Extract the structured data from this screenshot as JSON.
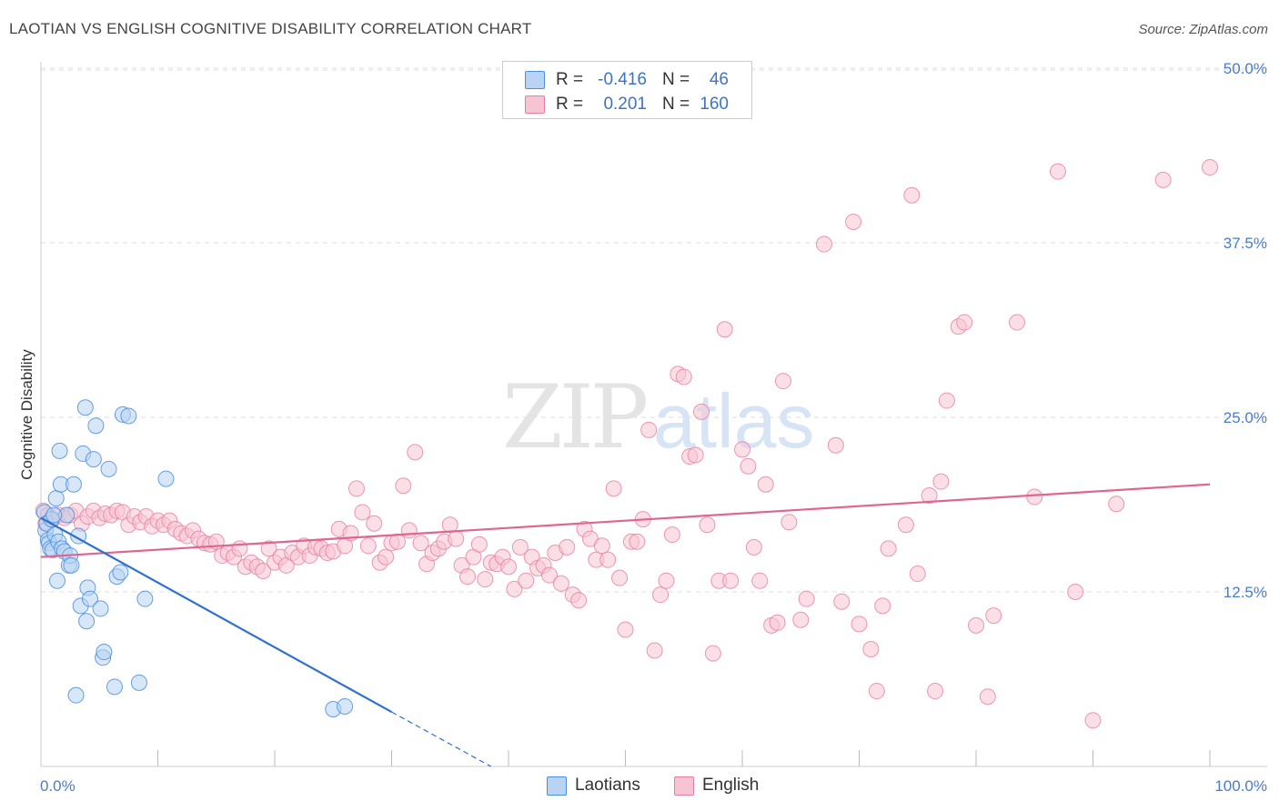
{
  "title": "LAOTIAN VS ENGLISH COGNITIVE DISABILITY CORRELATION CHART",
  "source": "Source: ZipAtlas.com",
  "watermark": {
    "zip": "ZIP",
    "atlas": "atlas"
  },
  "colors": {
    "laotians": "#4a8fdc",
    "laotians_fill": "#b8d3f3",
    "laotians_line": "#2f70d0",
    "english": "#e77ea0",
    "english_fill": "#f7c4d4",
    "english_line": "#e06590",
    "tick": "#4a7cc9",
    "grid": "#dddddd"
  },
  "legend": {
    "rows": [
      {
        "r_label": "R =",
        "r_value": "-0.416",
        "n_label": "N =",
        "n_value": "46"
      },
      {
        "r_label": "R =",
        "r_value": "0.201",
        "n_label": "N =",
        "n_value": "160"
      }
    ]
  },
  "bottom_legend": {
    "laotians": "Laotians",
    "english": "English"
  },
  "chart_data": {
    "type": "scatter",
    "xlabel": "",
    "ylabel": "Cognitive Disability",
    "xlim": [
      0,
      100
    ],
    "ylim": [
      0,
      50
    ],
    "x_tick_labels": [
      "0.0%",
      "100.0%"
    ],
    "y_ticks": [
      12.5,
      25.0,
      37.5,
      50.0
    ],
    "y_tick_labels": [
      "12.5%",
      "25.0%",
      "37.5%",
      "50.0%"
    ],
    "grid": true,
    "legend_position": "top-center",
    "series": [
      {
        "name": "Laotians",
        "points": [
          [
            0.3,
            18.2
          ],
          [
            0.4,
            16.9
          ],
          [
            0.5,
            17.4
          ],
          [
            0.6,
            16.2
          ],
          [
            0.7,
            16.0
          ],
          [
            0.8,
            15.6
          ],
          [
            0.9,
            17.7
          ],
          [
            1.0,
            15.5
          ],
          [
            1.2,
            16.6
          ],
          [
            1.3,
            19.2
          ],
          [
            1.4,
            13.3
          ],
          [
            1.5,
            16.1
          ],
          [
            1.6,
            22.6
          ],
          [
            1.7,
            20.2
          ],
          [
            1.8,
            15.6
          ],
          [
            2.0,
            15.4
          ],
          [
            2.2,
            18.0
          ],
          [
            2.4,
            14.4
          ],
          [
            2.5,
            15.1
          ],
          [
            2.6,
            14.4
          ],
          [
            2.8,
            20.2
          ],
          [
            3.0,
            5.1
          ],
          [
            3.2,
            16.5
          ],
          [
            3.4,
            11.5
          ],
          [
            3.6,
            22.4
          ],
          [
            3.8,
            25.7
          ],
          [
            3.9,
            10.4
          ],
          [
            4.0,
            12.8
          ],
          [
            4.2,
            12.0
          ],
          [
            4.5,
            22.0
          ],
          [
            4.7,
            24.4
          ],
          [
            5.1,
            11.3
          ],
          [
            5.3,
            7.8
          ],
          [
            5.4,
            8.2
          ],
          [
            5.8,
            21.3
          ],
          [
            6.3,
            5.7
          ],
          [
            6.5,
            13.6
          ],
          [
            6.8,
            13.9
          ],
          [
            7.0,
            25.2
          ],
          [
            7.5,
            25.1
          ],
          [
            8.4,
            6.0
          ],
          [
            8.9,
            12.0
          ],
          [
            10.7,
            20.6
          ],
          [
            25.0,
            4.1
          ],
          [
            26.0,
            4.3
          ],
          [
            1.1,
            18.0
          ]
        ],
        "trend": {
          "x": [
            0,
            30
          ],
          "y": [
            17.8,
            3.9
          ]
        },
        "trend_dashed": {
          "x": [
            30,
            38.5
          ],
          "y": [
            3.9,
            0
          ]
        }
      },
      {
        "name": "English",
        "points": [
          [
            0.2,
            18.3
          ],
          [
            0.4,
            17.4
          ],
          [
            0.6,
            18.0
          ],
          [
            1.0,
            17.7
          ],
          [
            1.5,
            18.0
          ],
          [
            2.0,
            17.8
          ],
          [
            2.5,
            18.0
          ],
          [
            3.0,
            18.3
          ],
          [
            3.5,
            17.4
          ],
          [
            4.0,
            17.9
          ],
          [
            4.5,
            18.3
          ],
          [
            5.0,
            17.8
          ],
          [
            5.5,
            18.1
          ],
          [
            6.0,
            18.0
          ],
          [
            6.5,
            18.3
          ],
          [
            7.0,
            18.2
          ],
          [
            7.5,
            17.3
          ],
          [
            8.0,
            17.9
          ],
          [
            8.5,
            17.5
          ],
          [
            9.0,
            17.9
          ],
          [
            9.5,
            17.2
          ],
          [
            10.0,
            17.6
          ],
          [
            10.5,
            17.3
          ],
          [
            11.0,
            17.6
          ],
          [
            11.5,
            17.0
          ],
          [
            12.0,
            16.7
          ],
          [
            12.5,
            16.5
          ],
          [
            13.0,
            16.9
          ],
          [
            13.5,
            16.3
          ],
          [
            14.0,
            16.0
          ],
          [
            14.5,
            15.9
          ],
          [
            15.0,
            16.1
          ],
          [
            15.5,
            15.1
          ],
          [
            16.0,
            15.3
          ],
          [
            16.5,
            15.0
          ],
          [
            17.0,
            15.6
          ],
          [
            17.5,
            14.3
          ],
          [
            18.0,
            14.6
          ],
          [
            18.5,
            14.3
          ],
          [
            19.0,
            14.0
          ],
          [
            19.5,
            15.6
          ],
          [
            20.0,
            14.6
          ],
          [
            20.5,
            15.0
          ],
          [
            21.0,
            14.4
          ],
          [
            21.5,
            15.3
          ],
          [
            22.0,
            15.0
          ],
          [
            22.5,
            15.8
          ],
          [
            23.0,
            15.1
          ],
          [
            23.5,
            15.7
          ],
          [
            24.0,
            15.6
          ],
          [
            24.5,
            15.3
          ],
          [
            25.0,
            15.4
          ],
          [
            25.5,
            17.0
          ],
          [
            26.0,
            15.8
          ],
          [
            26.5,
            16.7
          ],
          [
            27.0,
            19.9
          ],
          [
            27.5,
            18.2
          ],
          [
            28.0,
            15.8
          ],
          [
            28.5,
            17.4
          ],
          [
            29.0,
            14.6
          ],
          [
            29.5,
            15.0
          ],
          [
            30.0,
            16.0
          ],
          [
            30.5,
            16.1
          ],
          [
            31.0,
            20.1
          ],
          [
            31.5,
            16.9
          ],
          [
            32.0,
            22.5
          ],
          [
            32.5,
            16.0
          ],
          [
            33.0,
            14.5
          ],
          [
            33.5,
            15.3
          ],
          [
            34.0,
            15.6
          ],
          [
            34.5,
            16.1
          ],
          [
            35.0,
            17.3
          ],
          [
            35.5,
            16.3
          ],
          [
            36.0,
            14.4
          ],
          [
            36.5,
            13.6
          ],
          [
            37.0,
            15.0
          ],
          [
            37.5,
            15.9
          ],
          [
            38.0,
            13.4
          ],
          [
            38.5,
            14.6
          ],
          [
            39.0,
            14.5
          ],
          [
            39.5,
            15.0
          ],
          [
            40.0,
            14.3
          ],
          [
            40.5,
            12.7
          ],
          [
            41.0,
            15.7
          ],
          [
            41.5,
            13.3
          ],
          [
            42.0,
            15.0
          ],
          [
            42.5,
            14.2
          ],
          [
            43.0,
            14.4
          ],
          [
            43.5,
            13.7
          ],
          [
            44.0,
            15.3
          ],
          [
            44.5,
            13.1
          ],
          [
            45.0,
            15.7
          ],
          [
            45.5,
            12.3
          ],
          [
            46.0,
            11.9
          ],
          [
            46.5,
            17.0
          ],
          [
            47.0,
            16.3
          ],
          [
            47.5,
            14.8
          ],
          [
            48.0,
            15.8
          ],
          [
            48.5,
            14.8
          ],
          [
            49.0,
            19.9
          ],
          [
            49.5,
            13.5
          ],
          [
            50.0,
            9.8
          ],
          [
            50.5,
            16.1
          ],
          [
            51.0,
            16.1
          ],
          [
            51.5,
            17.7
          ],
          [
            52.0,
            24.1
          ],
          [
            52.5,
            8.3
          ],
          [
            53.0,
            12.3
          ],
          [
            53.5,
            13.3
          ],
          [
            54.0,
            16.6
          ],
          [
            54.5,
            28.1
          ],
          [
            55.0,
            27.9
          ],
          [
            55.5,
            22.2
          ],
          [
            56.0,
            22.3
          ],
          [
            56.5,
            25.4
          ],
          [
            57.0,
            17.3
          ],
          [
            57.5,
            8.1
          ],
          [
            58.0,
            13.3
          ],
          [
            58.5,
            31.3
          ],
          [
            59.0,
            13.3
          ],
          [
            60.0,
            22.7
          ],
          [
            60.5,
            21.5
          ],
          [
            61.0,
            15.7
          ],
          [
            61.5,
            13.3
          ],
          [
            62.0,
            20.2
          ],
          [
            62.5,
            10.1
          ],
          [
            63.0,
            10.3
          ],
          [
            63.5,
            27.6
          ],
          [
            64.0,
            17.5
          ],
          [
            65.0,
            10.5
          ],
          [
            65.5,
            12.0
          ],
          [
            67.0,
            37.4
          ],
          [
            68.0,
            23.0
          ],
          [
            68.5,
            11.8
          ],
          [
            69.5,
            39.0
          ],
          [
            70.0,
            10.2
          ],
          [
            71.0,
            8.4
          ],
          [
            71.5,
            5.4
          ],
          [
            72.0,
            11.5
          ],
          [
            72.5,
            15.6
          ],
          [
            74.0,
            17.3
          ],
          [
            74.5,
            40.9
          ],
          [
            75.0,
            13.8
          ],
          [
            76.0,
            19.4
          ],
          [
            76.5,
            5.4
          ],
          [
            77.0,
            20.4
          ],
          [
            77.5,
            26.2
          ],
          [
            78.5,
            31.5
          ],
          [
            79.0,
            31.8
          ],
          [
            80.0,
            10.1
          ],
          [
            81.0,
            5.0
          ],
          [
            81.5,
            10.8
          ],
          [
            83.5,
            31.8
          ],
          [
            85.0,
            19.3
          ],
          [
            87.0,
            42.6
          ],
          [
            88.5,
            12.5
          ],
          [
            90.0,
            3.3
          ],
          [
            92.0,
            18.8
          ],
          [
            96.0,
            42.0
          ],
          [
            100.0,
            42.9
          ]
        ],
        "trend": {
          "x": [
            0,
            100
          ],
          "y": [
            15.0,
            20.2
          ]
        }
      }
    ]
  }
}
